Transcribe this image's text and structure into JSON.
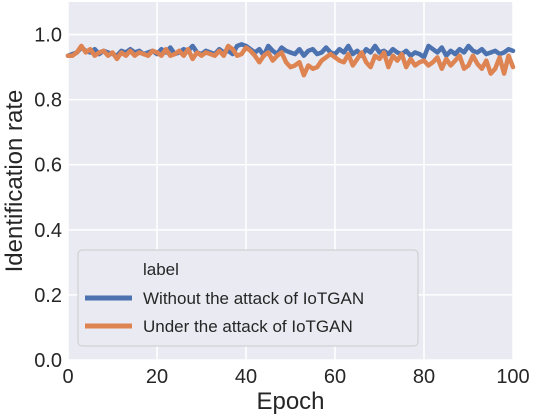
{
  "chart_data": {
    "type": "line",
    "xlabel": "Epoch",
    "ylabel": "Identification rate",
    "xlim": [
      0,
      100
    ],
    "ylim": [
      0.0,
      1.1
    ],
    "xticks": [
      0,
      20,
      40,
      60,
      80,
      100
    ],
    "xtick_labels": [
      "0",
      "20",
      "40",
      "60",
      "80",
      "100"
    ],
    "yticks": [
      0.0,
      0.2,
      0.4,
      0.6,
      0.8,
      1.0
    ],
    "ytick_labels": [
      "0.0",
      "0.2",
      "0.4",
      "0.6",
      "0.8",
      "1.0"
    ],
    "grid": true,
    "legend": {
      "title": "label",
      "placement": "lower-left"
    },
    "x": [
      0,
      1,
      2,
      3,
      4,
      5,
      6,
      7,
      8,
      9,
      10,
      11,
      12,
      13,
      14,
      15,
      16,
      17,
      18,
      19,
      20,
      21,
      22,
      23,
      24,
      25,
      26,
      27,
      28,
      29,
      30,
      31,
      32,
      33,
      34,
      35,
      36,
      37,
      38,
      39,
      40,
      41,
      42,
      43,
      44,
      45,
      46,
      47,
      48,
      49,
      50,
      51,
      52,
      53,
      54,
      55,
      56,
      57,
      58,
      59,
      60,
      61,
      62,
      63,
      64,
      65,
      66,
      67,
      68,
      69,
      70,
      71,
      72,
      73,
      74,
      75,
      76,
      77,
      78,
      79,
      80,
      81,
      82,
      83,
      84,
      85,
      86,
      87,
      88,
      89,
      90,
      91,
      92,
      93,
      94,
      95,
      96,
      97,
      98,
      99,
      100
    ],
    "series": [
      {
        "name": "Without the attack of IoTGAN",
        "color": "#4c72b0",
        "values": [
          0.935,
          0.94,
          0.945,
          0.96,
          0.95,
          0.945,
          0.955,
          0.94,
          0.95,
          0.945,
          0.94,
          0.935,
          0.95,
          0.945,
          0.955,
          0.945,
          0.95,
          0.94,
          0.945,
          0.95,
          0.94,
          0.955,
          0.945,
          0.96,
          0.94,
          0.945,
          0.955,
          0.95,
          0.965,
          0.945,
          0.94,
          0.95,
          0.945,
          0.94,
          0.955,
          0.945,
          0.95,
          0.94,
          0.965,
          0.97,
          0.965,
          0.955,
          0.945,
          0.955,
          0.935,
          0.965,
          0.95,
          0.94,
          0.96,
          0.95,
          0.945,
          0.94,
          0.955,
          0.935,
          0.95,
          0.955,
          0.94,
          0.945,
          0.96,
          0.945,
          0.94,
          0.955,
          0.945,
          0.965,
          0.94,
          0.95,
          0.935,
          0.955,
          0.945,
          0.965,
          0.945,
          0.95,
          0.94,
          0.955,
          0.945,
          0.94,
          0.95,
          0.935,
          0.945,
          0.94,
          0.93,
          0.965,
          0.955,
          0.945,
          0.96,
          0.935,
          0.95,
          0.94,
          0.955,
          0.945,
          0.965,
          0.95,
          0.945,
          0.955,
          0.94,
          0.945,
          0.95,
          0.94,
          0.945,
          0.955,
          0.95
        ]
      },
      {
        "name": "Under the attack of IoTGAN",
        "color": "#dd8452",
        "values": [
          0.935,
          0.935,
          0.945,
          0.965,
          0.945,
          0.955,
          0.935,
          0.945,
          0.95,
          0.935,
          0.945,
          0.925,
          0.945,
          0.935,
          0.95,
          0.935,
          0.945,
          0.94,
          0.935,
          0.95,
          0.945,
          0.935,
          0.955,
          0.935,
          0.94,
          0.95,
          0.935,
          0.955,
          0.925,
          0.945,
          0.935,
          0.945,
          0.94,
          0.935,
          0.95,
          0.935,
          0.965,
          0.955,
          0.935,
          0.94,
          0.96,
          0.95,
          0.935,
          0.915,
          0.935,
          0.945,
          0.92,
          0.935,
          0.945,
          0.915,
          0.9,
          0.905,
          0.915,
          0.875,
          0.905,
          0.895,
          0.9,
          0.92,
          0.93,
          0.94,
          0.93,
          0.92,
          0.915,
          0.94,
          0.905,
          0.925,
          0.945,
          0.915,
          0.9,
          0.935,
          0.925,
          0.945,
          0.9,
          0.935,
          0.92,
          0.94,
          0.9,
          0.925,
          0.905,
          0.915,
          0.92,
          0.905,
          0.915,
          0.93,
          0.895,
          0.925,
          0.905,
          0.92,
          0.935,
          0.895,
          0.905,
          0.935,
          0.91,
          0.895,
          0.92,
          0.88,
          0.895,
          0.93,
          0.88,
          0.935,
          0.9
        ]
      }
    ]
  }
}
